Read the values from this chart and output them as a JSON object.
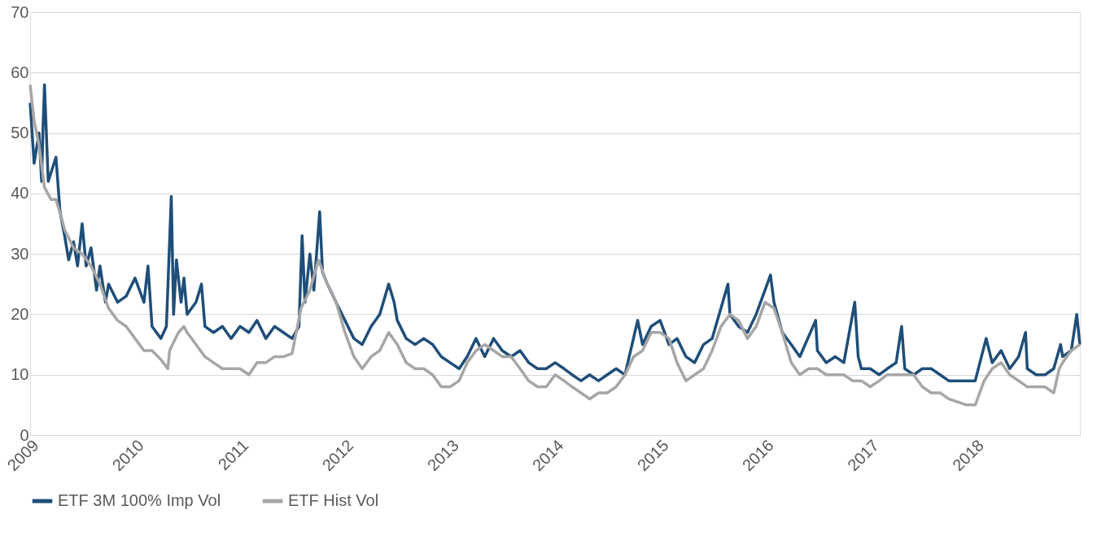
{
  "chart_data": {
    "type": "line",
    "xlim": [
      "2009-01-01",
      "2018-12-31"
    ],
    "xticks": [
      "2009",
      "2010",
      "2011",
      "2012",
      "2013",
      "2014",
      "2015",
      "2016",
      "2017",
      "2018"
    ],
    "ylim": [
      0,
      70
    ],
    "yticks": [
      0,
      10,
      20,
      30,
      40,
      50,
      60,
      70
    ],
    "grid": "y",
    "legend": "bottom",
    "line_style": "solid",
    "marker": "none",
    "series": [
      {
        "name": "ETF 3M 100% Imp Vol",
        "color": "#1f4e79",
        "x": [
          "2009-01-01",
          "2009-01-15",
          "2009-02-01",
          "2009-02-10",
          "2009-02-15",
          "2009-02-20",
          "2009-03-05",
          "2009-04-01",
          "2009-04-15",
          "2009-05-01",
          "2009-05-15",
          "2009-06-01",
          "2009-06-15",
          "2009-07-01",
          "2009-07-15",
          "2009-08-01",
          "2009-08-20",
          "2009-09-01",
          "2009-09-20",
          "2009-10-01",
          "2009-11-01",
          "2009-12-01",
          "2010-01-01",
          "2010-02-01",
          "2010-02-15",
          "2010-03-01",
          "2010-04-01",
          "2010-04-20",
          "2010-05-07",
          "2010-05-15",
          "2010-05-25",
          "2010-06-10",
          "2010-06-20",
          "2010-07-01",
          "2010-08-01",
          "2010-08-20",
          "2010-09-01",
          "2010-10-01",
          "2010-11-01",
          "2010-12-01",
          "2011-01-01",
          "2011-02-01",
          "2011-03-01",
          "2011-04-01",
          "2011-05-01",
          "2011-06-01",
          "2011-07-01",
          "2011-07-25",
          "2011-08-05",
          "2011-08-15",
          "2011-09-01",
          "2011-09-15",
          "2011-10-05",
          "2011-10-15",
          "2011-11-01",
          "2011-12-01",
          "2012-01-01",
          "2012-02-01",
          "2012-03-01",
          "2012-04-01",
          "2012-05-01",
          "2012-06-01",
          "2012-06-20",
          "2012-07-01",
          "2012-08-01",
          "2012-09-01",
          "2012-10-01",
          "2012-11-01",
          "2012-12-01",
          "2013-01-01",
          "2013-02-01",
          "2013-03-01",
          "2013-04-01",
          "2013-05-01",
          "2013-06-01",
          "2013-07-01",
          "2013-08-01",
          "2013-09-01",
          "2013-10-01",
          "2013-11-01",
          "2013-12-01",
          "2014-01-01",
          "2014-02-01",
          "2014-03-01",
          "2014-04-01",
          "2014-05-01",
          "2014-06-01",
          "2014-07-01",
          "2014-08-01",
          "2014-09-01",
          "2014-10-15",
          "2014-11-01",
          "2014-12-01",
          "2015-01-01",
          "2015-02-01",
          "2015-03-01",
          "2015-04-01",
          "2015-05-01",
          "2015-06-01",
          "2015-07-01",
          "2015-08-25",
          "2015-09-01",
          "2015-10-01",
          "2015-11-01",
          "2015-12-01",
          "2016-01-20",
          "2016-02-01",
          "2016-03-01",
          "2016-04-01",
          "2016-05-01",
          "2016-06-25",
          "2016-07-01",
          "2016-08-01",
          "2016-09-01",
          "2016-10-01",
          "2016-11-08",
          "2016-11-20",
          "2016-12-01",
          "2017-01-01",
          "2017-02-01",
          "2017-03-01",
          "2017-04-01",
          "2017-04-20",
          "2017-05-01",
          "2017-06-01",
          "2017-07-01",
          "2017-08-01",
          "2017-09-01",
          "2017-10-01",
          "2017-11-01",
          "2017-12-01",
          "2018-01-01",
          "2018-02-08",
          "2018-03-01",
          "2018-04-01",
          "2018-05-01",
          "2018-06-01",
          "2018-06-25",
          "2018-07-01",
          "2018-08-01",
          "2018-09-01",
          "2018-10-01",
          "2018-10-25",
          "2018-11-01",
          "2018-12-01",
          "2018-12-20",
          "2018-12-31"
        ],
        "values": [
          55,
          45,
          50,
          42,
          51,
          58,
          42,
          46,
          37,
          33,
          29,
          32,
          28,
          35,
          28,
          31,
          24,
          28,
          22,
          25,
          22,
          23,
          26,
          22,
          28,
          18,
          16,
          18,
          39.5,
          20,
          29,
          22,
          26,
          20,
          22,
          25,
          18,
          17,
          18,
          16,
          18,
          17,
          19,
          16,
          18,
          17,
          16,
          18,
          33,
          22,
          30,
          24,
          37,
          27,
          25,
          22,
          19,
          16,
          15,
          18,
          20,
          25,
          22,
          19,
          16,
          15,
          16,
          15,
          13,
          12,
          11,
          13,
          16,
          13,
          16,
          14,
          13,
          14,
          12,
          11,
          11,
          12,
          11,
          10,
          9,
          10,
          9,
          10,
          11,
          10,
          19,
          15,
          18,
          19,
          15,
          16,
          13,
          12,
          15,
          16,
          25,
          20,
          18,
          17,
          20,
          26.5,
          22,
          17,
          15,
          13,
          19,
          14,
          12,
          13,
          12,
          22,
          13,
          11,
          11,
          10,
          11,
          12,
          18,
          11,
          10,
          11,
          11,
          10,
          9,
          9,
          9,
          9,
          16,
          12,
          14,
          11,
          13,
          17,
          11,
          10,
          10,
          11,
          15,
          13,
          14,
          20,
          15
        ]
      },
      {
        "name": "ETF Hist Vol",
        "color": "#a6a6a6",
        "x": [
          "2009-01-01",
          "2009-01-15",
          "2009-02-01",
          "2009-02-20",
          "2009-03-15",
          "2009-04-01",
          "2009-04-20",
          "2009-05-01",
          "2009-06-01",
          "2009-07-01",
          "2009-08-01",
          "2009-09-01",
          "2009-10-01",
          "2009-11-01",
          "2009-12-01",
          "2010-01-01",
          "2010-02-01",
          "2010-03-01",
          "2010-04-01",
          "2010-04-25",
          "2010-05-01",
          "2010-06-01",
          "2010-06-20",
          "2010-07-01",
          "2010-08-01",
          "2010-09-01",
          "2010-10-01",
          "2010-11-01",
          "2011-01-01",
          "2011-02-01",
          "2011-03-01",
          "2011-04-01",
          "2011-05-01",
          "2011-06-01",
          "2011-07-01",
          "2011-08-01",
          "2011-09-01",
          "2011-10-01",
          "2011-11-01",
          "2011-12-01",
          "2012-01-01",
          "2012-02-01",
          "2012-03-01",
          "2012-04-01",
          "2012-05-01",
          "2012-06-01",
          "2012-07-01",
          "2012-08-01",
          "2012-09-01",
          "2012-10-01",
          "2012-11-01",
          "2012-12-01",
          "2013-01-01",
          "2013-02-01",
          "2013-03-01",
          "2013-04-01",
          "2013-05-01",
          "2013-06-01",
          "2013-07-01",
          "2013-08-01",
          "2013-09-01",
          "2013-10-01",
          "2013-11-01",
          "2013-12-01",
          "2014-01-01",
          "2014-02-01",
          "2014-03-01",
          "2014-04-01",
          "2014-05-01",
          "2014-06-01",
          "2014-07-01",
          "2014-08-01",
          "2014-09-01",
          "2014-10-01",
          "2014-11-01",
          "2014-12-01",
          "2015-01-01",
          "2015-02-01",
          "2015-03-01",
          "2015-04-01",
          "2015-05-01",
          "2015-06-01",
          "2015-07-01",
          "2015-08-01",
          "2015-09-01",
          "2015-10-01",
          "2015-11-01",
          "2015-12-01",
          "2016-01-01",
          "2016-02-01",
          "2016-03-01",
          "2016-04-01",
          "2016-05-01",
          "2016-06-01",
          "2016-07-01",
          "2016-08-01",
          "2016-09-01",
          "2016-10-01",
          "2016-11-01",
          "2016-12-01",
          "2017-01-01",
          "2017-02-01",
          "2017-03-01",
          "2017-04-01",
          "2017-05-01",
          "2017-06-01",
          "2017-07-01",
          "2017-08-01",
          "2017-09-01",
          "2017-10-01",
          "2017-11-01",
          "2017-12-01",
          "2018-01-01",
          "2018-02-01",
          "2018-03-01",
          "2018-04-01",
          "2018-05-01",
          "2018-06-01",
          "2018-07-01",
          "2018-08-01",
          "2018-09-01",
          "2018-10-01",
          "2018-10-20",
          "2018-11-01",
          "2018-12-01",
          "2018-12-31"
        ],
        "values": [
          58,
          52,
          48,
          41,
          39,
          39,
          36,
          34,
          31,
          30,
          28,
          25,
          21,
          19,
          18,
          16,
          14,
          14,
          12.5,
          11,
          14,
          17,
          18,
          17,
          15,
          13,
          12,
          11,
          11,
          10,
          12,
          12,
          13,
          13,
          13.5,
          21,
          24,
          29,
          25,
          22,
          17,
          13,
          11,
          13,
          14,
          17,
          15,
          12,
          11,
          11,
          10,
          8,
          8,
          9,
          12,
          14,
          15,
          14,
          13,
          13,
          11,
          9,
          8,
          8,
          10,
          9,
          8,
          7,
          6,
          7,
          7,
          8,
          10,
          13,
          14,
          17,
          17,
          16,
          12,
          9,
          10,
          11,
          14,
          18,
          20,
          19,
          16,
          18,
          22,
          21,
          17,
          12,
          10,
          11,
          11,
          10,
          10,
          10,
          9,
          9,
          8,
          9,
          10,
          10,
          10,
          10,
          8,
          7,
          7,
          6,
          5.5,
          5,
          5,
          9,
          11,
          12,
          10,
          9,
          8,
          8,
          8,
          7,
          11,
          12,
          14,
          15
        ]
      }
    ]
  }
}
